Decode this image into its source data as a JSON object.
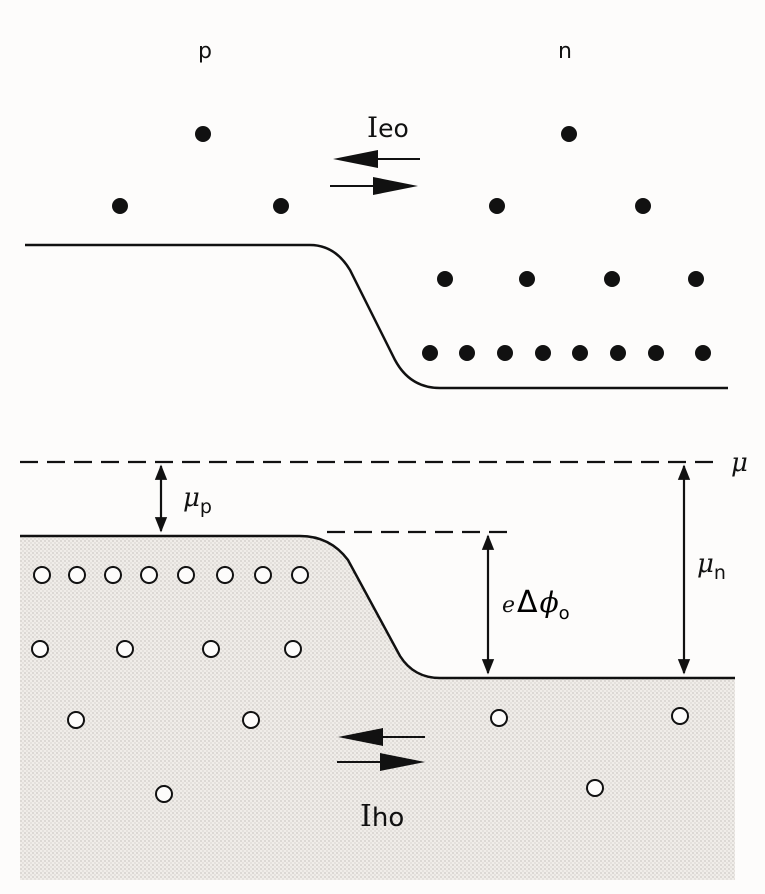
{
  "region_labels": {
    "p": "p",
    "n": "n"
  },
  "electron_current": {
    "main": "I",
    "sub": "eo"
  },
  "hole_current": {
    "main": "I",
    "sub": "ho"
  },
  "chemical_potential": "μ",
  "mu_p": {
    "main": "μ",
    "sub": "p"
  },
  "mu_n": {
    "main": "μ",
    "sub": "n"
  },
  "barrier": {
    "prefix": "e",
    "delta": "Δ",
    "phi": "ϕ",
    "sub": "o"
  },
  "colors": {
    "ink": "#111111",
    "hole_region_fill": "#ece9e5",
    "background": "#fdfcfb"
  },
  "particles": {
    "electron_symbol": "filled-dot",
    "hole_symbol": "open-circle"
  }
}
